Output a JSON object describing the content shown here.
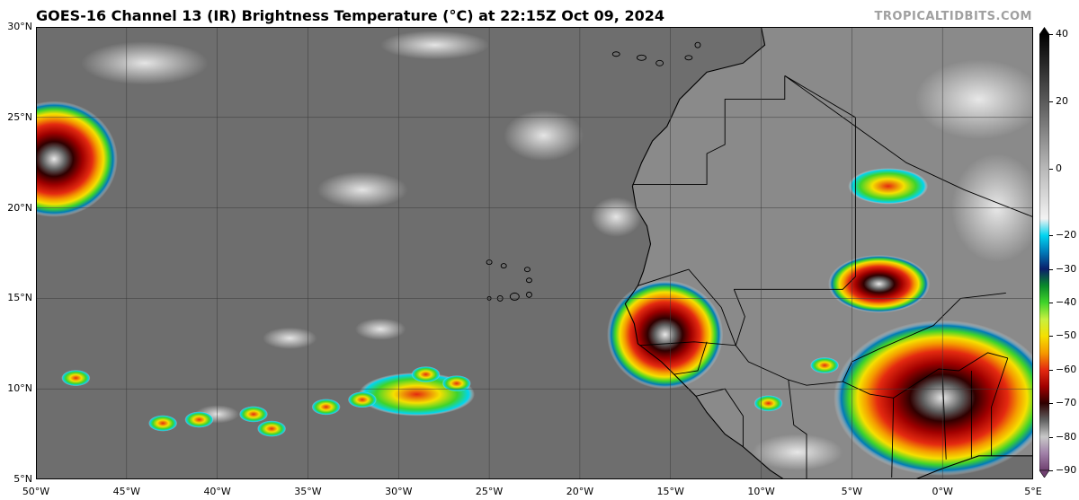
{
  "title": "GOES-16 Channel 13 (IR) Brightness Temperature (°C) at 22:15Z Oct 09, 2024",
  "credit": "TROPICALTIDBITS.COM",
  "map": {
    "lon_range": [
      -50,
      5
    ],
    "lat_range": [
      5,
      30
    ],
    "lat_ticks": [
      {
        "value": 30,
        "label": "30°N"
      },
      {
        "value": 25,
        "label": "25°N"
      },
      {
        "value": 20,
        "label": "20°N"
      },
      {
        "value": 15,
        "label": "15°N"
      },
      {
        "value": 10,
        "label": "10°N"
      },
      {
        "value": 5,
        "label": "5°N"
      }
    ],
    "lon_ticks": [
      {
        "value": -50,
        "label": "50°W"
      },
      {
        "value": -45,
        "label": "45°W"
      },
      {
        "value": -40,
        "label": "40°W"
      },
      {
        "value": -35,
        "label": "35°W"
      },
      {
        "value": -30,
        "label": "30°W"
      },
      {
        "value": -25,
        "label": "25°W"
      },
      {
        "value": -20,
        "label": "20°W"
      },
      {
        "value": -15,
        "label": "15°W"
      },
      {
        "value": -10,
        "label": "10°W"
      },
      {
        "value": -5,
        "label": "5°W"
      },
      {
        "value": 0,
        "label": "0°W"
      },
      {
        "value": 5,
        "label": "5°E"
      }
    ],
    "colors": {
      "ocean_ir": "#6e6e6e",
      "land_ir": "#8a8a8a",
      "cold_cloud": "#e8e8e8",
      "grid": "#3a3a3a",
      "coast": "#000000"
    },
    "storms": [
      {
        "name": "hurricane-west-edge",
        "lon": -49.0,
        "lat": 22.7,
        "r_lon": 3.5,
        "r_lat": 3.2
      },
      {
        "name": "mcs-senegal",
        "lon": -15.3,
        "lat": 13.0,
        "r_lon": 3.2,
        "r_lat": 3.0
      },
      {
        "name": "mcs-mali",
        "lon": -3.5,
        "lat": 15.8,
        "r_lon": 2.8,
        "r_lat": 1.6
      },
      {
        "name": "mcs-gulf-guinea",
        "lon": 0.0,
        "lat": 9.5,
        "r_lon": 6.0,
        "r_lat": 4.3
      },
      {
        "name": "itcz-cluster",
        "lon": -29.0,
        "lat": 9.7,
        "r_lon": 3.2,
        "r_lat": 1.2
      },
      {
        "name": "algeria-cloud",
        "lon": -3.0,
        "lat": 21.2,
        "r_lon": 2.2,
        "r_lat": 1.0
      }
    ]
  },
  "colorbar": {
    "range": [
      -90,
      40
    ],
    "ticks": [
      {
        "value": 40,
        "label": "40"
      },
      {
        "value": 20,
        "label": "20"
      },
      {
        "value": 0,
        "label": "0"
      },
      {
        "value": -20,
        "label": "−20"
      },
      {
        "value": -30,
        "label": "−30"
      },
      {
        "value": -40,
        "label": "−40"
      },
      {
        "value": -50,
        "label": "−50"
      },
      {
        "value": -60,
        "label": "−60"
      },
      {
        "value": -70,
        "label": "−70"
      },
      {
        "value": -80,
        "label": "−80"
      },
      {
        "value": -90,
        "label": "−90"
      }
    ],
    "stops": [
      {
        "value": 40,
        "color": "#000000"
      },
      {
        "value": 20,
        "color": "#5a5a5a"
      },
      {
        "value": 0,
        "color": "#b8b8b8"
      },
      {
        "value": -15,
        "color": "#f2f2f2"
      },
      {
        "value": -20,
        "color": "#00d5f0"
      },
      {
        "value": -25,
        "color": "#007ab8"
      },
      {
        "value": -30,
        "color": "#0a1f6a"
      },
      {
        "value": -35,
        "color": "#0a8a2a"
      },
      {
        "value": -40,
        "color": "#3fd42a"
      },
      {
        "value": -45,
        "color": "#c8f040"
      },
      {
        "value": -50,
        "color": "#f5e000"
      },
      {
        "value": -55,
        "color": "#f59a00"
      },
      {
        "value": -60,
        "color": "#e42a10"
      },
      {
        "value": -65,
        "color": "#a00000"
      },
      {
        "value": -70,
        "color": "#300000"
      },
      {
        "value": -75,
        "color": "#606060"
      },
      {
        "value": -80,
        "color": "#c8c8c8"
      },
      {
        "value": -85,
        "color": "#a080a8"
      },
      {
        "value": -90,
        "color": "#704070"
      }
    ]
  }
}
